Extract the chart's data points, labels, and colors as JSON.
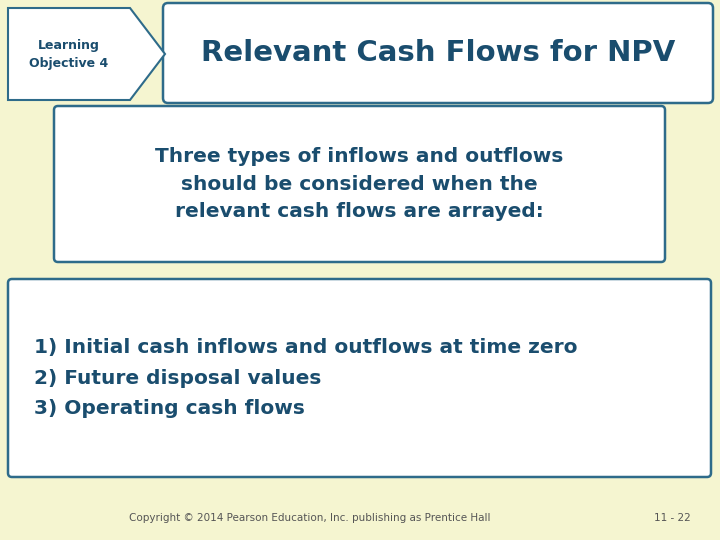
{
  "background_color": "#f5f5d0",
  "title_text": "Relevant Cash Flows for NPV",
  "title_color": "#1a4d6e",
  "title_box_color": "#ffffff",
  "title_box_edge_color": "#2e6b8a",
  "arrow_fill_color": "#ffffff",
  "arrow_edge_color": "#2e6b8a",
  "lo_text_line1": "Learning",
  "lo_text_line2": "Objective 4",
  "lo_text_color": "#1a4d6e",
  "box1_text": "Three types of inflows and outflows\nshould be considered when the\nrelevant cash flows are arrayed:",
  "box1_color": "#ffffff",
  "box1_edge_color": "#2e6b8a",
  "box1_text_color": "#1a4d6e",
  "box2_text": "1) Initial cash inflows and outflows at time zero\n2) Future disposal values\n3) Operating cash flows",
  "box2_color": "#ffffff",
  "box2_edge_color": "#2e6b8a",
  "box2_text_color": "#1a4d6e",
  "copyright_text": "Copyright © 2014 Pearson Education, Inc. publishing as Prentice Hall",
  "page_text": "11 - 22",
  "footer_color": "#555555"
}
